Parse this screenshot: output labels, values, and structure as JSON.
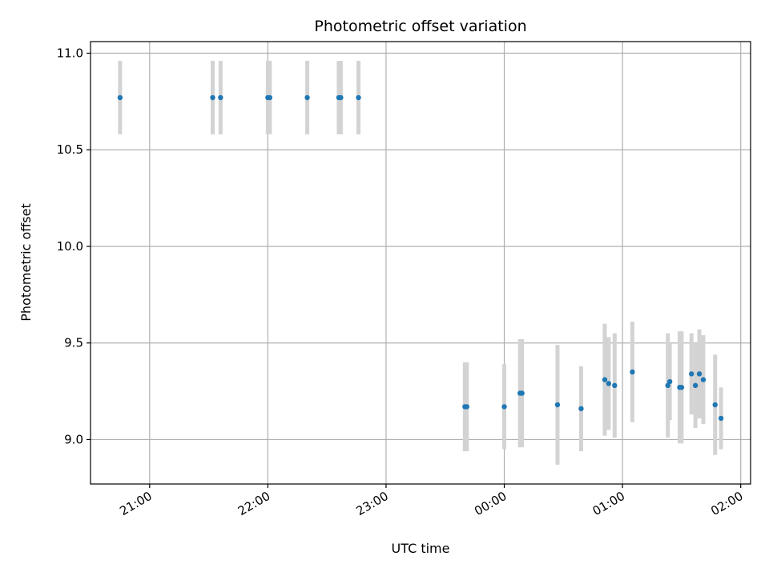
{
  "chart_data": {
    "type": "scatter",
    "title": "Photometric offset variation",
    "xlabel": "UTC time",
    "ylabel": "Photometric offset",
    "x_axis": "time (hours, continuing past midnight)",
    "xlim": [
      "20:30",
      "02:05"
    ],
    "ylim": [
      8.77,
      11.06
    ],
    "x_ticks": [
      "21:00",
      "22:00",
      "23:00",
      "00:00",
      "01:00",
      "02:00"
    ],
    "y_ticks": [
      "9.0",
      "9.5",
      "10.0",
      "10.5",
      "11.0"
    ],
    "grid": true,
    "errorbar_color": "#d3d3d3",
    "marker_color": "#1f77b4",
    "points": [
      {
        "x": "20:45",
        "y": 10.77,
        "err": 0.19
      },
      {
        "x": "21:32",
        "y": 10.77,
        "err": 0.19
      },
      {
        "x": "21:36",
        "y": 10.77,
        "err": 0.19
      },
      {
        "x": "22:00",
        "y": 10.77,
        "err": 0.19
      },
      {
        "x": "22:01",
        "y": 10.77,
        "err": 0.19
      },
      {
        "x": "22:20",
        "y": 10.77,
        "err": 0.19
      },
      {
        "x": "22:36",
        "y": 10.77,
        "err": 0.19
      },
      {
        "x": "22:37",
        "y": 10.77,
        "err": 0.19
      },
      {
        "x": "22:46",
        "y": 10.77,
        "err": 0.19
      },
      {
        "x": "23:40",
        "y": 9.17,
        "err": 0.23
      },
      {
        "x": "23:41",
        "y": 9.17,
        "err": 0.23
      },
      {
        "x": "00:00",
        "y": 9.17,
        "err": 0.22
      },
      {
        "x": "00:08",
        "y": 9.24,
        "err": 0.28
      },
      {
        "x": "00:09",
        "y": 9.24,
        "err": 0.28
      },
      {
        "x": "00:27",
        "y": 9.18,
        "err": 0.31
      },
      {
        "x": "00:39",
        "y": 9.16,
        "err": 0.22
      },
      {
        "x": "00:51",
        "y": 9.31,
        "err": 0.29
      },
      {
        "x": "00:53",
        "y": 9.29,
        "err": 0.24
      },
      {
        "x": "00:56",
        "y": 9.28,
        "err": 0.27
      },
      {
        "x": "01:05",
        "y": 9.35,
        "err": 0.26
      },
      {
        "x": "01:23",
        "y": 9.28,
        "err": 0.27
      },
      {
        "x": "01:24",
        "y": 9.3,
        "err": 0.2
      },
      {
        "x": "01:29",
        "y": 9.27,
        "err": 0.29
      },
      {
        "x": "01:30",
        "y": 9.27,
        "err": 0.29
      },
      {
        "x": "01:35",
        "y": 9.34,
        "err": 0.21
      },
      {
        "x": "01:37",
        "y": 9.28,
        "err": 0.22
      },
      {
        "x": "01:39",
        "y": 9.34,
        "err": 0.23
      },
      {
        "x": "01:41",
        "y": 9.31,
        "err": 0.23
      },
      {
        "x": "01:47",
        "y": 9.18,
        "err": 0.26
      },
      {
        "x": "01:50",
        "y": 9.11,
        "err": 0.16
      }
    ]
  }
}
